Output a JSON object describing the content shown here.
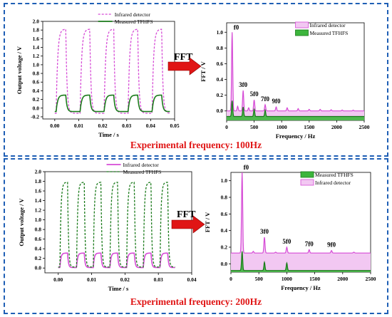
{
  "colors": {
    "border": "#1f5fb5",
    "infrared": "#d64bd6",
    "tfhfs": "#1a7a1a",
    "fft_fill_infrared": "#f2c8f2",
    "fft_fill_tfhfs": "#3cb53c",
    "arrow": "#e01515",
    "caption": "#e01515"
  },
  "panels": [
    {
      "caption": "Experimental frequency: 100Hz",
      "fft_label": "FFT",
      "time_chart": {
        "type": "line",
        "xlabel": "Time / s",
        "ylabel": "Output  voltage  / V",
        "xlim": [
          -0.005,
          0.05
        ],
        "ylim": [
          -0.25,
          2.0
        ],
        "xticks": [
          "0.00",
          "0.01",
          "0.02",
          "0.03",
          "0.04",
          "0.05"
        ],
        "yticks": [
          "-0.2",
          "0.0",
          "0.2",
          "0.4",
          "0.6",
          "0.8",
          "1.0",
          "1.2",
          "1.4",
          "1.6",
          "1.8",
          "2.0"
        ],
        "legend_position": "top-right",
        "legend_order": [
          "Infrared detector",
          "Measured TFHFS"
        ],
        "series": [
          {
            "name": "Infrared detector",
            "style": "dashed",
            "frequency_hz": 100,
            "pulse_start_s": 0.0006,
            "pulse_end_s": 0.0046,
            "high_v": 1.82,
            "low_v": -0.12,
            "t_start_s": 0.0,
            "t_end_s": 0.048
          },
          {
            "name": "Measured TFHFS",
            "style": "solid",
            "frequency_hz": 100,
            "pulse_start_s": 0.0006,
            "pulse_end_s": 0.0046,
            "high_v": 0.3,
            "low_v": -0.08,
            "t_start_s": 0.0,
            "t_end_s": 0.048
          }
        ]
      },
      "fft_chart": {
        "type": "area",
        "xlabel": "Frequency / Hz",
        "ylabel": "FFT / V",
        "xlim": [
          0,
          2500
        ],
        "ylim": [
          -0.12,
          1.12
        ],
        "xticks": [
          "0",
          "500",
          "1000",
          "1500",
          "2000",
          "2500"
        ],
        "yticks": [
          "0.0",
          "0.2",
          "0.4",
          "0.6",
          "0.8",
          "1.0"
        ],
        "legend_position": "top-right",
        "legend_order": [
          "Infrared detector",
          "Measured TFHFS"
        ],
        "fundamental_hz": 100,
        "series": [
          {
            "name": "Infrared detector",
            "baseline": 0.0,
            "harmonics": [
              [
                100,
                1.0
              ],
              [
                200,
                0.06
              ],
              [
                300,
                0.26
              ],
              [
                400,
                0.04
              ],
              [
                500,
                0.14
              ],
              [
                700,
                0.08
              ],
              [
                900,
                0.05
              ],
              [
                1100,
                0.04
              ],
              [
                1300,
                0.03
              ],
              [
                1500,
                0.02
              ],
              [
                1700,
                0.02
              ],
              [
                1900,
                0.015
              ],
              [
                2100,
                0.012
              ],
              [
                2300,
                0.01
              ]
            ]
          },
          {
            "name": "Measured TFHFS",
            "baseline": -0.07,
            "harmonics": [
              [
                100,
                0.13
              ],
              [
                300,
                0.05
              ],
              [
                500,
                0.02
              ],
              [
                700,
                0.01
              ]
            ]
          }
        ],
        "peak_labels": [
          {
            "text": "f0",
            "x": 100,
            "y": 1.0
          },
          {
            "text": "3f0",
            "x": 300,
            "y": 0.27
          },
          {
            "text": "5f0",
            "x": 500,
            "y": 0.15
          },
          {
            "text": "7f0",
            "x": 700,
            "y": 0.09
          },
          {
            "text": "9f0",
            "x": 900,
            "y": 0.06
          }
        ]
      }
    },
    {
      "caption": "Experimental frequency: 200Hz",
      "fft_label": "FFT",
      "time_chart": {
        "type": "line",
        "xlabel": "Time / s",
        "ylabel": "Output  voltage  / V",
        "xlim": [
          -0.004,
          0.04
        ],
        "ylim": [
          -0.1,
          2.0
        ],
        "xticks": [
          "0.00",
          "0.01",
          "0.02",
          "0.03",
          "0.04"
        ],
        "yticks": [
          "0.0",
          "0.2",
          "0.4",
          "0.6",
          "0.8",
          "1.0",
          "1.2",
          "1.4",
          "1.6",
          "1.8",
          "2.0"
        ],
        "legend_position": "top-right",
        "legend_order": [
          "Infrared detector",
          "Measured TFHFS"
        ],
        "series": [
          {
            "name": "Infrared detector",
            "style": "solid",
            "frequency_hz": 200,
            "pulse_start_s": 0.0005,
            "pulse_end_s": 0.0028,
            "high_v": 0.31,
            "low_v": 0.01,
            "t_start_s": 0.0,
            "t_end_s": 0.035
          },
          {
            "name": "Measured TFHFS",
            "style": "dashed",
            "frequency_hz": 200,
            "pulse_start_s": 0.0005,
            "pulse_end_s": 0.0028,
            "high_v": 1.78,
            "low_v": 0.02,
            "t_start_s": 0.0,
            "t_end_s": 0.035
          }
        ]
      },
      "fft_chart": {
        "type": "area",
        "xlabel": "Frequency / Hz",
        "ylabel": "FFT / V",
        "xlim": [
          0,
          2500
        ],
        "ylim": [
          -0.1,
          1.1
        ],
        "xticks": [
          "0",
          "500",
          "1000",
          "1500",
          "2000",
          "2500"
        ],
        "yticks": [
          "0.0",
          "0.2",
          "0.4",
          "0.6",
          "0.8",
          "1.0"
        ],
        "legend_position": "top-right",
        "legend_order": [
          "Measured TFHFS",
          "Infrared detector"
        ],
        "fundamental_hz": 200,
        "series": [
          {
            "name": "Infrared detector",
            "baseline": 0.13,
            "harmonics": [
              [
                200,
                1.1
              ],
              [
                400,
                0.15
              ],
              [
                600,
                0.32
              ],
              [
                800,
                0.14
              ],
              [
                1000,
                0.2
              ],
              [
                1400,
                0.17
              ],
              [
                1800,
                0.16
              ],
              [
                2200,
                0.14
              ]
            ]
          },
          {
            "name": "Measured TFHFS",
            "baseline": -0.08,
            "harmonics": [
              [
                200,
                0.15
              ],
              [
                600,
                0.02
              ],
              [
                1000,
                0.01
              ]
            ]
          }
        ],
        "peak_labels": [
          {
            "text": "f0",
            "x": 200,
            "y": 1.1
          },
          {
            "text": "3f0",
            "x": 600,
            "y": 0.33
          },
          {
            "text": "5f0",
            "x": 1000,
            "y": 0.21
          },
          {
            "text": "7f0",
            "x": 1400,
            "y": 0.18
          },
          {
            "text": "9f0",
            "x": 1800,
            "y": 0.17
          }
        ]
      }
    }
  ]
}
